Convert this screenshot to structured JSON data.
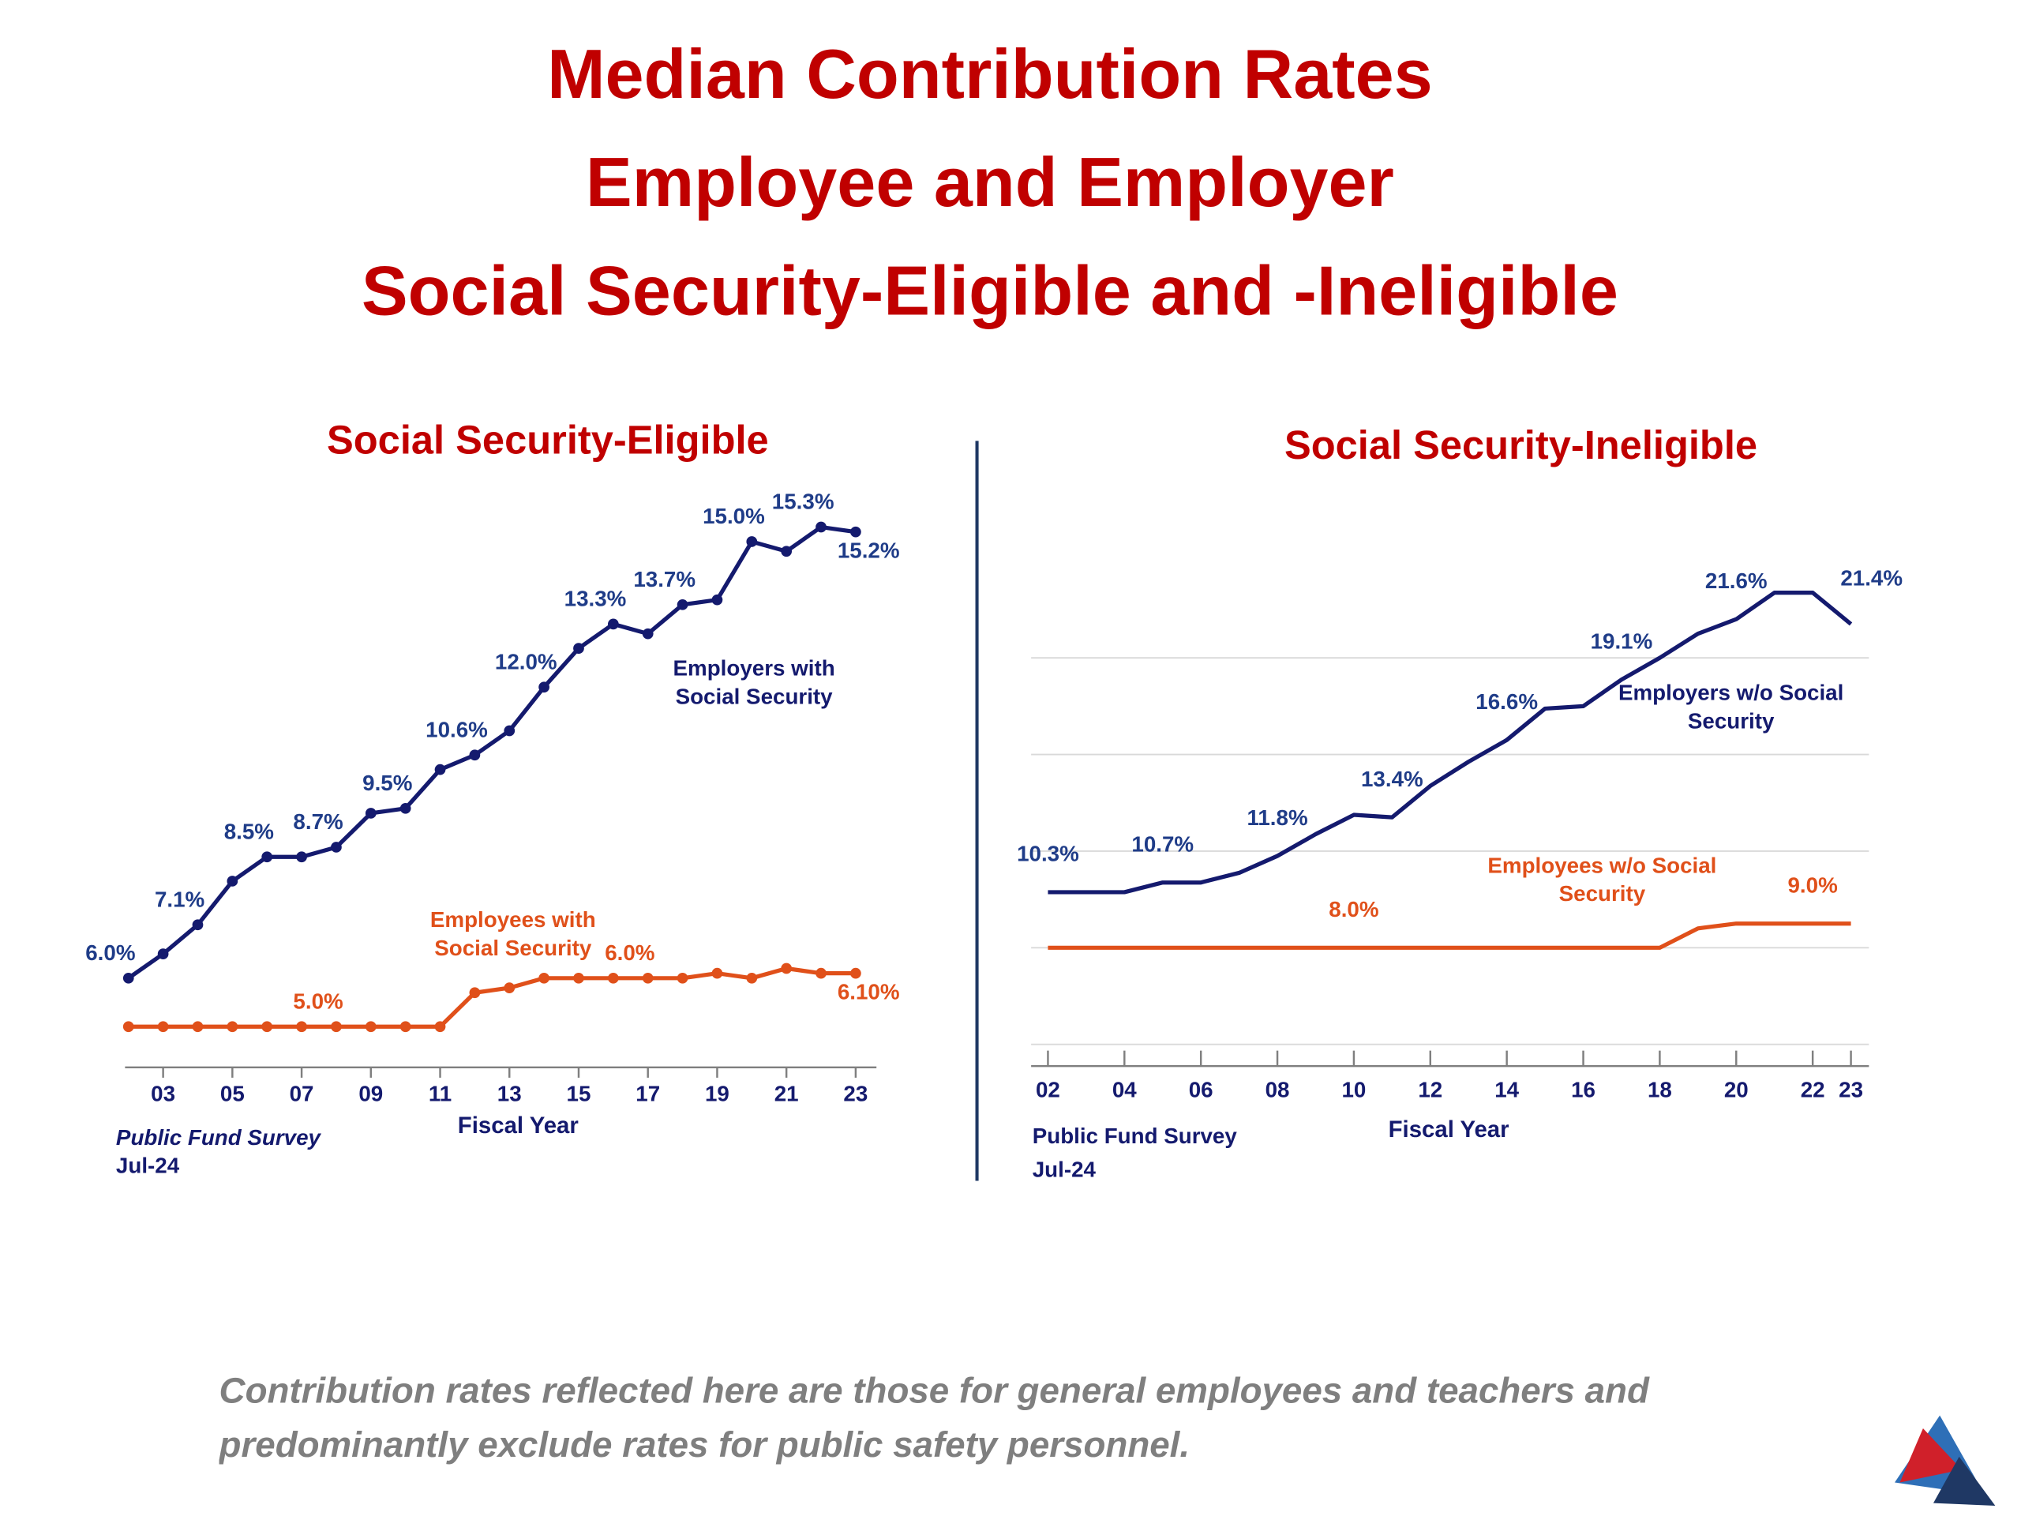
{
  "title": [
    "Median Contribution Rates",
    "Employee and Employer",
    "Social Security-Eligible and -Ineligible"
  ],
  "footnote": "Contribution rates reflected here are those for general employees and teachers and predominantly exclude rates for public safety personnel.",
  "chart_data": [
    {
      "type": "line",
      "title": "Social Security-Eligible",
      "x_label": "Fiscal Year",
      "source": [
        "Public Fund Survey",
        "Jul-24"
      ],
      "markers": true,
      "x": [
        2,
        3,
        4,
        5,
        6,
        7,
        8,
        9,
        10,
        11,
        12,
        13,
        14,
        15,
        16,
        17,
        18,
        19,
        20,
        21,
        22,
        23
      ],
      "xlim": [
        1.9,
        23.6
      ],
      "xticks": [
        {
          "value": 3,
          "label": "03"
        },
        {
          "value": 5,
          "label": "05"
        },
        {
          "value": 7,
          "label": "07"
        },
        {
          "value": 9,
          "label": "09"
        },
        {
          "value": 11,
          "label": "11"
        },
        {
          "value": 13,
          "label": "13"
        },
        {
          "value": 15,
          "label": "15"
        },
        {
          "value": 17,
          "label": "17"
        },
        {
          "value": 19,
          "label": "19"
        },
        {
          "value": 21,
          "label": "21"
        },
        {
          "value": 23,
          "label": "23"
        }
      ],
      "ylim": [
        4.16,
        16.2
      ],
      "series": [
        {
          "name": "Employers with Social Security",
          "color": "#141a6e",
          "values": [
            6.0,
            6.5,
            7.1,
            8.0,
            8.5,
            8.5,
            8.7,
            9.4,
            9.5,
            10.3,
            10.6,
            11.1,
            12.0,
            12.8,
            13.3,
            13.1,
            13.7,
            13.8,
            15.0,
            14.8,
            15.3,
            15.2
          ],
          "value_labels": [
            "6.0%",
            null,
            "7.1%",
            null,
            "8.5%",
            null,
            "8.7%",
            null,
            "9.5%",
            null,
            "10.6%",
            null,
            "12.0%",
            null,
            "13.3%",
            null,
            "13.7%",
            null,
            "15.0%",
            null,
            "15.3%",
            "15.2%"
          ]
        },
        {
          "name": "Employees with Social Security",
          "color": "#e0501a",
          "values": [
            5.0,
            5.0,
            5.0,
            5.0,
            5.0,
            5.0,
            5.0,
            5.0,
            5.0,
            5.0,
            5.7,
            5.8,
            6.0,
            6.0,
            6.0,
            6.0,
            6.0,
            6.1,
            6.0,
            6.2,
            6.1,
            6.1
          ],
          "value_labels": [
            null,
            null,
            null,
            null,
            null,
            null,
            "5.0%",
            null,
            null,
            null,
            null,
            null,
            null,
            null,
            null,
            "6.0%",
            null,
            null,
            null,
            null,
            null,
            "6.10%"
          ]
        }
      ]
    },
    {
      "type": "line",
      "title": "Social Security-Ineligible",
      "x_label": "Fiscal Year",
      "source": [
        "Public Fund Survey",
        "Jul-24"
      ],
      "markers": false,
      "x": [
        2,
        3,
        4,
        5,
        6,
        7,
        8,
        9,
        10,
        11,
        12,
        13,
        14,
        15,
        16,
        17,
        18,
        19,
        20,
        21,
        22,
        23
      ],
      "xlim": [
        1.56,
        23.47
      ],
      "xticks": [
        {
          "value": 2,
          "label": "02"
        },
        {
          "value": 4,
          "label": "04"
        },
        {
          "value": 6,
          "label": "06"
        },
        {
          "value": 8,
          "label": "08"
        },
        {
          "value": 10,
          "label": "10"
        },
        {
          "value": 12,
          "label": "12"
        },
        {
          "value": 14,
          "label": "14"
        },
        {
          "value": 16,
          "label": "16"
        },
        {
          "value": 18,
          "label": "18"
        },
        {
          "value": 20,
          "label": "20"
        },
        {
          "value": 22,
          "label": "22"
        },
        {
          "value": 23,
          "label": "23"
        }
      ],
      "ylim": [
        3.1,
        23.7
      ],
      "grid": true,
      "ygrid": [
        4,
        8,
        12,
        16,
        20
      ],
      "series": [
        {
          "name": "Employers w/o Social Security",
          "color": "#141a6e",
          "values": [
            10.3,
            10.3,
            10.3,
            10.7,
            10.7,
            11.1,
            11.8,
            12.7,
            13.5,
            13.4,
            14.7,
            15.7,
            16.6,
            17.9,
            18.0,
            19.1,
            20.0,
            21.0,
            21.6,
            22.7,
            22.7,
            21.4
          ],
          "value_labels": [
            "10.3%",
            null,
            null,
            "10.7%",
            null,
            null,
            "11.8%",
            null,
            null,
            "13.4%",
            null,
            null,
            "16.6%",
            null,
            null,
            "19.1%",
            null,
            null,
            "21.6%",
            null,
            null,
            "21.4%"
          ]
        },
        {
          "name": "Employees w/o Social Security",
          "color": "#e0501a",
          "values": [
            8.0,
            8.0,
            8.0,
            8.0,
            8.0,
            8.0,
            8.0,
            8.0,
            8.0,
            8.0,
            8.0,
            8.0,
            8.0,
            8.0,
            8.0,
            8.0,
            8.0,
            8.8,
            9.0,
            9.0,
            9.0,
            9.0
          ],
          "value_labels": [
            null,
            null,
            null,
            null,
            null,
            null,
            null,
            null,
            "8.0%",
            null,
            null,
            null,
            null,
            null,
            null,
            null,
            null,
            null,
            null,
            null,
            "9.0%",
            null
          ]
        }
      ]
    }
  ]
}
